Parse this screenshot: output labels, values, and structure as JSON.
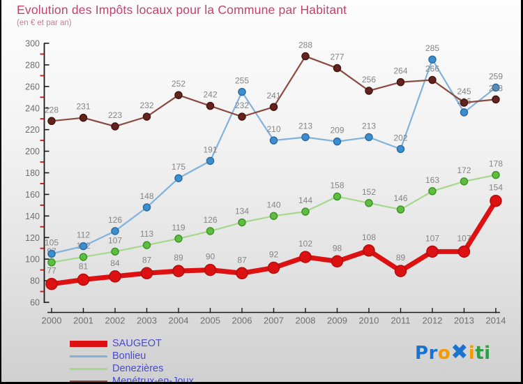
{
  "header": {
    "title": "Evolution des Impôts locaux pour la Commune par Habitant",
    "subtitle": "(en € et par an)"
  },
  "chart_data": {
    "type": "line",
    "title": "Evolution des Impôts locaux pour la Commune par Habitant",
    "subtitle": "(en € et par an)",
    "x": [
      2000,
      2001,
      2002,
      2003,
      2004,
      2005,
      2006,
      2007,
      2008,
      2009,
      2010,
      2011,
      2012,
      2013,
      2014
    ],
    "xlabel": "",
    "ylabel": "",
    "ylim": [
      60,
      300
    ],
    "ytick_step": 20,
    "yticks": [
      60,
      80,
      100,
      120,
      140,
      160,
      180,
      200,
      220,
      240,
      260,
      280,
      300
    ],
    "grid": false,
    "legend_position": "bottom-left",
    "series": [
      {
        "name": "SAUGEOT",
        "values": [
          77,
          81,
          84,
          87,
          89,
          90,
          87,
          92,
          102,
          98,
          108,
          89,
          107,
          107,
          154
        ],
        "line_color": "#dd1111",
        "marker_fill": "#dd1111",
        "marker_stroke": "#b30d0d",
        "line_width": 7,
        "marker_r": 8,
        "z": 4
      },
      {
        "name": "Bonlieu",
        "values": [
          105,
          112,
          126,
          148,
          175,
          191,
          255,
          210,
          213,
          209,
          213,
          202,
          285,
          236,
          259
        ],
        "line_color": "#7fb2dc",
        "marker_fill": "#3d8ecf",
        "marker_stroke": "#2b6ca5",
        "line_width": 2.2,
        "marker_r": 5,
        "z": 2
      },
      {
        "name": "Denezières",
        "values": [
          97,
          102,
          107,
          113,
          119,
          126,
          134,
          140,
          144,
          158,
          152,
          146,
          163,
          172,
          178
        ],
        "line_color": "#a5d88b",
        "marker_fill": "#5fbe41",
        "marker_stroke": "#3f9427",
        "line_width": 2.2,
        "marker_r": 5,
        "z": 1
      },
      {
        "name": "Menétrux-en-Joux",
        "values": [
          228,
          231,
          223,
          232,
          252,
          242,
          232,
          241,
          288,
          277,
          256,
          264,
          266,
          245,
          248
        ],
        "line_color": "#8a4a41",
        "marker_fill": "#63241f",
        "marker_stroke": "#451511",
        "line_width": 2.2,
        "marker_r": 5,
        "z": 3
      }
    ],
    "colors": {
      "title": "#c4426b",
      "subtitle": "#c87e96",
      "tick_label": "#6e6e6e",
      "data_label": "#858585",
      "axis": "#1a1a1a",
      "minor_tick": "#cc2222",
      "legend_text": "#4a4ad0"
    }
  },
  "logo": {
    "text": "Proxiti",
    "letters": [
      {
        "ch": "P",
        "color": "#1a73cf",
        "big": false
      },
      {
        "ch": "r",
        "color": "#1a73cf",
        "big": false
      },
      {
        "ch": "o",
        "color": "#f59b00",
        "big": false
      },
      {
        "ch": "✖",
        "color": "#1a73cf",
        "big": true
      },
      {
        "ch": "i",
        "color": "#f59b00",
        "big": false
      },
      {
        "ch": "t",
        "color": "#2f9e44",
        "big": false
      },
      {
        "ch": "i",
        "color": "#2f9e44",
        "big": false
      }
    ]
  }
}
